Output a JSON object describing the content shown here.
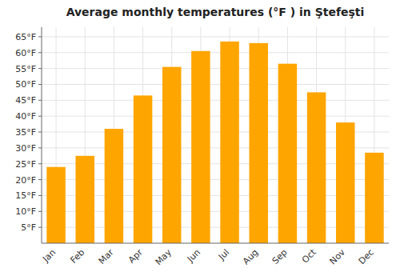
{
  "chart_data": {
    "type": "bar",
    "title": "Average monthly temperatures (°F ) in Ştefeşti",
    "categories": [
      "Jan",
      "Feb",
      "Mar",
      "Apr",
      "May",
      "Jun",
      "Jul",
      "Aug",
      "Sep",
      "Oct",
      "Nov",
      "Dec"
    ],
    "values": [
      24.0,
      27.5,
      36.0,
      46.5,
      55.5,
      60.5,
      63.5,
      63.0,
      56.5,
      47.5,
      38.0,
      28.5
    ],
    "color": "#FFA500",
    "ylim": [
      0,
      68
    ],
    "yticks": [
      {
        "value": 5,
        "label": "5°F"
      },
      {
        "value": 10,
        "label": "10°F"
      },
      {
        "value": 15,
        "label": "15°F"
      },
      {
        "value": 20,
        "label": "20°F"
      },
      {
        "value": 25,
        "label": "25°F"
      },
      {
        "value": 30,
        "label": "30°F"
      },
      {
        "value": 35,
        "label": "35°F"
      },
      {
        "value": 40,
        "label": "40°F"
      },
      {
        "value": 45,
        "label": "45°F"
      },
      {
        "value": 50,
        "label": "50°F"
      },
      {
        "value": 55,
        "label": "55°F"
      },
      {
        "value": 60,
        "label": "60°F"
      },
      {
        "value": 65,
        "label": "65°F"
      }
    ],
    "grid": true
  }
}
